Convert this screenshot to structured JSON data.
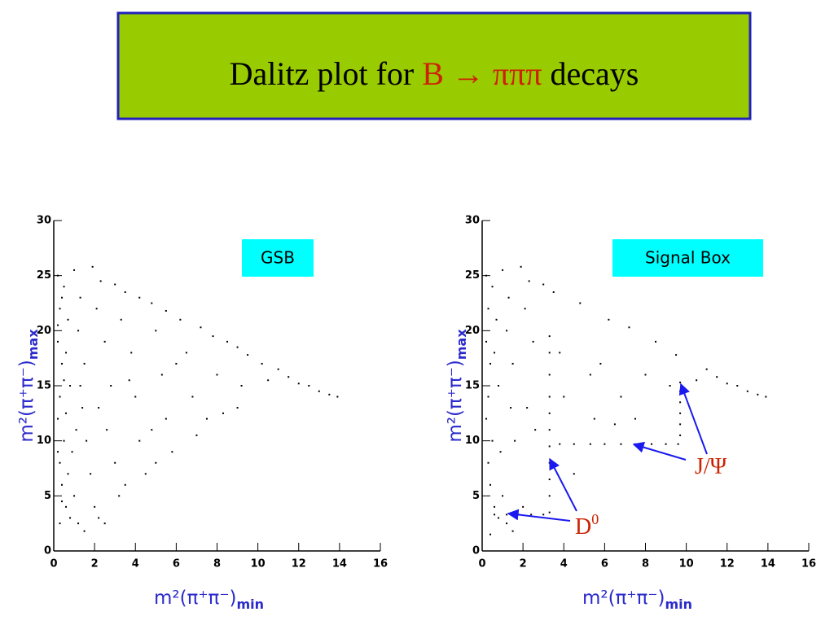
{
  "title": {
    "prefix": "Dalitz plot for",
    "highlight": "B → πππ",
    "suffix": "decays"
  },
  "chart_data": [
    {
      "type": "scatter",
      "label": "GSB",
      "color": "#000000",
      "xlabel": {
        "text": "m²(π⁺π⁻)",
        "sub": "min"
      },
      "ylabel": {
        "text": "m²(π⁺π⁻)",
        "sub": "max"
      },
      "xlim": [
        0,
        16
      ],
      "ylim": [
        0,
        30
      ],
      "xticks": [
        0,
        2,
        4,
        6,
        8,
        10,
        12,
        14,
        16
      ],
      "yticks": [
        0,
        5,
        10,
        15,
        20,
        25,
        30
      ],
      "x": [
        0.2,
        0.3,
        0.2,
        0.4,
        0.3,
        0.2,
        0.5,
        0.3,
        0.4,
        0.6,
        0.8,
        0.5,
        0.7,
        0.6,
        0.8,
        0.6,
        0.9,
        0.7,
        1.0,
        1.2,
        1.5,
        1.0,
        1.3,
        1.2,
        1.5,
        1.4,
        1.6,
        1.8,
        2.0,
        2.2,
        1.9,
        2.3,
        2.1,
        2.5,
        2.8,
        2.6,
        3.0,
        3.2,
        3.0,
        3.5,
        3.3,
        3.8,
        4.0,
        4.2,
        4.5,
        4.2,
        4.8,
        5.0,
        5.3,
        5.5,
        5.8,
        5.5,
        6.2,
        6.5,
        6.8,
        7.0,
        7.2,
        7.8,
        8.0,
        8.3,
        8.5,
        9.0,
        9.2,
        9.5,
        10.2,
        10.5,
        11.0,
        11.5,
        12.0,
        12.5,
        13.0,
        13.5,
        13.9,
        0.3,
        0.4,
        0.2,
        0.5,
        0.2,
        0.4,
        2.5,
        3.5,
        6.0,
        7.5,
        9.0,
        4.8,
        2.2,
        1.1,
        1.3,
        3.7,
        5.0
      ],
      "y": [
        25,
        22,
        19,
        17,
        14,
        12,
        10,
        8,
        6,
        4,
        3,
        24,
        21,
        18,
        15,
        12.5,
        9,
        7,
        5,
        2.5,
        1.8,
        25.5,
        23,
        20,
        17,
        13,
        10,
        7,
        4,
        3,
        25.8,
        24.5,
        22,
        19,
        15,
        11,
        8,
        5,
        24.2,
        23.5,
        21,
        18,
        14,
        10,
        7,
        23,
        22.5,
        20,
        16,
        12,
        9,
        21.8,
        21,
        18,
        14,
        10.5,
        20.3,
        19.5,
        16,
        12.5,
        19,
        18.5,
        15,
        17.8,
        17,
        15.5,
        16.5,
        15.8,
        15.2,
        15,
        14.5,
        14.2,
        14,
        2.5,
        4.5,
        9,
        15.5,
        20.5,
        23,
        2.5,
        6,
        17,
        12,
        13,
        11,
        13,
        11,
        15,
        15.5,
        8
      ]
    },
    {
      "type": "scatter",
      "label": "Signal Box",
      "color": "#000000",
      "xlabel": {
        "text": "m²(π⁺π⁻)",
        "sub": "min"
      },
      "ylabel": {
        "text": "m²(π⁺π⁻)",
        "sub": "max"
      },
      "xlim": [
        0,
        16
      ],
      "ylim": [
        0,
        30
      ],
      "xticks": [
        0,
        2,
        4,
        6,
        8,
        10,
        12,
        14,
        16
      ],
      "yticks": [
        0,
        5,
        10,
        15,
        20,
        25,
        30
      ],
      "annotations": [
        {
          "text": "J/Ψ"
        },
        {
          "text": "D",
          "sup": "0"
        }
      ],
      "x": [
        3.3,
        3.3,
        3.3,
        3.3,
        3.3,
        3.3,
        3.3,
        3.3,
        3.3,
        3.3,
        3.3,
        0.6,
        1.2,
        1.8,
        2.4,
        3.0,
        3.8,
        4.5,
        5.3,
        6.0,
        6.8,
        7.5,
        8.3,
        9.0,
        9.6,
        9.7,
        9.7,
        9.7,
        9.7,
        9.7,
        9.7,
        0.2,
        0.3,
        0.2,
        0.4,
        0.3,
        0.2,
        0.5,
        0.3,
        0.4,
        0.6,
        0.8,
        0.5,
        0.7,
        0.6,
        0.8,
        0.9,
        1.0,
        1.2,
        1.5,
        1.0,
        1.3,
        1.2,
        1.5,
        1.4,
        1.6,
        2.0,
        1.9,
        2.3,
        2.1,
        2.5,
        2.6,
        3.0,
        3.5,
        3.8,
        4.0,
        4.5,
        4.8,
        5.3,
        5.5,
        6.2,
        6.8,
        7.2,
        8.0,
        8.5,
        9.2,
        9.5,
        10.5,
        11.0,
        11.5,
        12.0,
        12.5,
        13.0,
        13.5,
        13.9,
        0.4,
        2.2,
        5.8,
        7.5,
        6.5
      ],
      "y": [
        3.5,
        5,
        6.5,
        8,
        9.5,
        11,
        12.5,
        14,
        16,
        18,
        19.5,
        3.3,
        3.3,
        3.3,
        3.3,
        3.3,
        9.7,
        9.7,
        9.7,
        9.7,
        9.7,
        9.7,
        9.7,
        9.7,
        9.7,
        10.5,
        11.5,
        12.5,
        13.5,
        14.5,
        15.3,
        25,
        22,
        19,
        17,
        14,
        12,
        10,
        8,
        6,
        4,
        3,
        24,
        21,
        18,
        15,
        9,
        5,
        2.5,
        1.8,
        25.5,
        23,
        20,
        17,
        13,
        10,
        4,
        25.8,
        24.5,
        22,
        19,
        11,
        24.2,
        23.5,
        18,
        14,
        7,
        22.5,
        16,
        12,
        21,
        14,
        20.3,
        16,
        19,
        15,
        17.8,
        15.5,
        16.5,
        15.8,
        15.2,
        15,
        14.5,
        14.2,
        14,
        1.5,
        13,
        17,
        12,
        11.5
      ]
    }
  ]
}
